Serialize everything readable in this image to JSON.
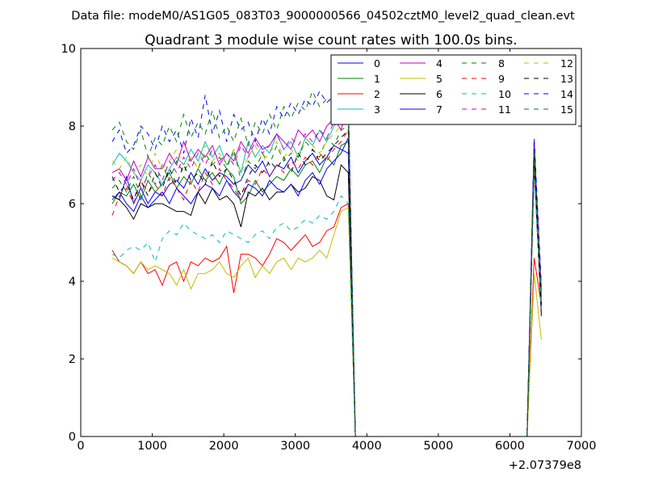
{
  "chart_data": {
    "type": "line",
    "suptitle": "Data file: modeM0/AS1G05_083T03_9000000566_04502cztM0_level2_quad_clean.evt",
    "title": "Quadrant 3 module wise count rates with 100.0s bins.",
    "xlabel": "",
    "ylabel": "",
    "x_offset_label": "+2.07379e8",
    "xlim": [
      0,
      7000
    ],
    "ylim": [
      0,
      10
    ],
    "xticks": [
      0,
      1000,
      2000,
      3000,
      4000,
      5000,
      6000,
      7000
    ],
    "yticks": [
      0,
      2,
      4,
      6,
      8,
      10
    ],
    "grid": false,
    "legend": {
      "placement": "top-right",
      "columns": 4
    },
    "x": [
      440,
      540,
      640,
      740,
      840,
      940,
      1040,
      1140,
      1240,
      1340,
      1440,
      1540,
      1640,
      1740,
      1840,
      1940,
      2040,
      2140,
      2240,
      2340,
      2440,
      2540,
      2640,
      2740,
      2840,
      2940,
      3040,
      3140,
      3240,
      3340,
      3440,
      3540,
      3640,
      3740,
      3840,
      3940,
      4040,
      4140,
      4240,
      4340,
      4440,
      4540,
      4640,
      4740,
      4840,
      4940,
      5040,
      5140,
      5240,
      5340,
      5440,
      5540,
      5640,
      5740,
      5840,
      5940,
      6040,
      6140,
      6240,
      6340,
      6440
    ],
    "series": [
      {
        "name": "0",
        "color": "#0000ff",
        "dash": "solid",
        "values": [
          6.2,
          6.1,
          6.7,
          6.0,
          6.4,
          6.0,
          6.3,
          6.2,
          6.5,
          6.6,
          6.4,
          6.8,
          6.5,
          6.9,
          6.6,
          6.8,
          6.7,
          6.5,
          6.6,
          7.0,
          6.8,
          7.1,
          6.7,
          7.0,
          6.9,
          7.2,
          6.8,
          7.1,
          7.3,
          7.0,
          7.2,
          7.5,
          7.4,
          7.3,
          0,
          0,
          0,
          0,
          0,
          0,
          0,
          0,
          0,
          0,
          0,
          0,
          0,
          0,
          0,
          0,
          0,
          0,
          0,
          0,
          0,
          0,
          0,
          0,
          0,
          7.4,
          3.2
        ]
      },
      {
        "name": "1",
        "color": "#008000",
        "dash": "solid",
        "values": [
          6.0,
          6.3,
          6.2,
          6.5,
          6.1,
          6.6,
          6.3,
          6.5,
          6.8,
          6.4,
          6.7,
          6.5,
          6.9,
          6.6,
          6.8,
          6.5,
          6.9,
          6.7,
          6.0,
          6.2,
          6.6,
          6.3,
          6.5,
          6.7,
          6.6,
          6.9,
          6.7,
          7.0,
          7.1,
          6.8,
          7.2,
          7.0,
          7.5,
          7.6,
          0,
          0,
          0,
          0,
          0,
          0,
          0,
          0,
          0,
          0,
          0,
          0,
          0,
          0,
          0,
          0,
          0,
          0,
          0,
          0,
          0,
          0,
          0,
          0,
          0,
          7.2,
          3.5
        ]
      },
      {
        "name": "2",
        "color": "#ff0000",
        "dash": "solid",
        "values": [
          4.8,
          4.5,
          4.4,
          4.2,
          4.5,
          4.2,
          4.3,
          3.9,
          4.4,
          4.5,
          4.0,
          4.5,
          4.4,
          4.6,
          4.5,
          4.6,
          4.9,
          3.7,
          4.7,
          4.7,
          4.6,
          4.4,
          4.7,
          5.1,
          5.0,
          4.8,
          5.0,
          5.2,
          4.9,
          5.0,
          5.3,
          5.4,
          5.9,
          6.0,
          0,
          0,
          0,
          0,
          0,
          0,
          0,
          0,
          0,
          0,
          0,
          0,
          0,
          0,
          0,
          0,
          0,
          0,
          0,
          0,
          0,
          0,
          0,
          0,
          0,
          4.6,
          3.4
        ]
      },
      {
        "name": "3",
        "color": "#00bfbf",
        "dash": "solid",
        "values": [
          7.0,
          7.3,
          7.1,
          6.8,
          6.6,
          7.0,
          6.8,
          6.5,
          6.9,
          7.2,
          7.0,
          7.4,
          7.1,
          7.6,
          7.2,
          7.5,
          7.0,
          7.3,
          6.8,
          7.6,
          7.2,
          7.5,
          7.3,
          7.8,
          7.4,
          7.6,
          7.2,
          7.7,
          7.5,
          7.9,
          7.6,
          8.0,
          8.2,
          8.5,
          0,
          0,
          0,
          0,
          0,
          0,
          0,
          0,
          0,
          0,
          0,
          0,
          0,
          0,
          0,
          0,
          0,
          0,
          0,
          0,
          0,
          0,
          0,
          0,
          0,
          7.3,
          3.6
        ]
      },
      {
        "name": "4",
        "color": "#bf00bf",
        "dash": "solid",
        "values": [
          6.8,
          6.9,
          6.6,
          7.1,
          6.7,
          7.2,
          6.9,
          6.9,
          7.3,
          7.0,
          7.6,
          7.1,
          7.4,
          7.2,
          7.5,
          7.0,
          7.3,
          7.1,
          7.6,
          7.3,
          7.7,
          7.4,
          7.5,
          7.8,
          7.6,
          7.4,
          7.9,
          7.7,
          7.9,
          7.6,
          8.0,
          8.2,
          7.9,
          8.6,
          0,
          0,
          0,
          0,
          0,
          0,
          0,
          0,
          0,
          0,
          0,
          0,
          0,
          0,
          0,
          0,
          0,
          0,
          0,
          0,
          0,
          0,
          0,
          0,
          0,
          7.6,
          3.8
        ]
      },
      {
        "name": "5",
        "color": "#bfbf00",
        "dash": "solid",
        "values": [
          4.6,
          4.5,
          4.4,
          4.2,
          4.5,
          4.3,
          4.4,
          4.3,
          4.2,
          3.9,
          4.3,
          3.8,
          4.2,
          4.2,
          4.3,
          4.5,
          4.2,
          4.1,
          4.4,
          4.6,
          4.1,
          4.4,
          4.2,
          4.5,
          4.6,
          4.3,
          4.6,
          4.5,
          4.6,
          4.8,
          4.6,
          5.2,
          5.8,
          5.9,
          0,
          0,
          0,
          0,
          0,
          0,
          0,
          0,
          0,
          0,
          0,
          0,
          0,
          0,
          0,
          0,
          0,
          0,
          0,
          0,
          0,
          0,
          0,
          0,
          0,
          4.2,
          2.5
        ]
      },
      {
        "name": "6",
        "color": "#000000",
        "dash": "solid",
        "values": [
          6.2,
          6.1,
          5.9,
          5.6,
          6.0,
          5.9,
          6.0,
          6.0,
          5.9,
          5.8,
          5.8,
          5.7,
          6.3,
          6.0,
          6.4,
          6.1,
          6.2,
          6.0,
          5.4,
          6.3,
          6.2,
          6.4,
          6.1,
          6.3,
          6.3,
          6.5,
          6.3,
          6.4,
          6.7,
          6.6,
          6.2,
          6.1,
          7.0,
          6.8,
          0,
          0,
          0,
          0,
          0,
          0,
          0,
          0,
          0,
          0,
          0,
          0,
          0,
          0,
          0,
          0,
          0,
          0,
          0,
          0,
          0,
          0,
          0,
          0,
          0,
          7.0,
          3.1
        ]
      },
      {
        "name": "7",
        "color": "#0000ff",
        "dash": "solid",
        "values": [
          6.1,
          6.3,
          6.0,
          5.8,
          6.2,
          5.9,
          6.1,
          6.3,
          6.0,
          6.4,
          6.2,
          6.0,
          6.3,
          6.5,
          6.4,
          6.2,
          6.6,
          6.3,
          6.1,
          6.5,
          6.4,
          6.2,
          6.6,
          6.4,
          6.3,
          6.5,
          6.2,
          6.6,
          6.8,
          6.5,
          6.9,
          7.1,
          7.3,
          7.7,
          0,
          0,
          0,
          0,
          0,
          0,
          0,
          0,
          0,
          0,
          0,
          0,
          0,
          0,
          0,
          0,
          0,
          0,
          0,
          0,
          0,
          0,
          0,
          0,
          0,
          7.6,
          3.3
        ]
      },
      {
        "name": "8",
        "color": "#008000",
        "dash": "dashed",
        "values": [
          6.4,
          6.6,
          6.3,
          6.7,
          6.2,
          6.8,
          6.5,
          7.0,
          6.6,
          7.1,
          6.8,
          7.2,
          6.9,
          7.3,
          7.0,
          7.2,
          6.9,
          7.4,
          6.6,
          7.1,
          6.9,
          7.3,
          7.0,
          7.5,
          7.1,
          7.3,
          7.2,
          7.6,
          7.4,
          7.2,
          7.7,
          7.5,
          7.9,
          8.0,
          0,
          0,
          0,
          0,
          0,
          0,
          0,
          0,
          0,
          0,
          0,
          0,
          0,
          0,
          0,
          0,
          0,
          0,
          0,
          0,
          0,
          0,
          0,
          0,
          0,
          7.3,
          3.4
        ]
      },
      {
        "name": "9",
        "color": "#ff0000",
        "dash": "dashed",
        "values": [
          5.7,
          6.2,
          6.4,
          6.0,
          6.6,
          6.3,
          6.5,
          6.2,
          6.7,
          6.4,
          6.1,
          6.6,
          6.3,
          6.8,
          6.5,
          6.9,
          6.6,
          6.4,
          6.1,
          6.6,
          6.5,
          6.9,
          6.7,
          7.0,
          6.8,
          7.1,
          6.9,
          7.2,
          7.0,
          7.3,
          7.1,
          7.4,
          7.6,
          7.9,
          0,
          0,
          0,
          0,
          0,
          0,
          0,
          0,
          0,
          0,
          0,
          0,
          0,
          0,
          0,
          0,
          0,
          0,
          0,
          0,
          0,
          0,
          0,
          0,
          0,
          6.9,
          3.2
        ]
      },
      {
        "name": "10",
        "color": "#00bfbf",
        "dash": "dashed",
        "values": [
          4.7,
          4.6,
          4.8,
          4.9,
          4.8,
          5.0,
          4.5,
          5.1,
          5.3,
          5.2,
          5.5,
          5.3,
          5.2,
          5.1,
          5.2,
          5.0,
          5.3,
          5.2,
          5.1,
          5.0,
          5.2,
          5.3,
          5.1,
          5.4,
          5.5,
          5.3,
          5.4,
          5.6,
          5.5,
          5.7,
          5.6,
          5.8,
          6.2,
          6.0,
          0,
          0,
          0,
          0,
          0,
          0,
          0,
          0,
          0,
          0,
          0,
          0,
          0,
          0,
          0,
          0,
          0,
          0,
          0,
          0,
          0,
          0,
          0,
          0,
          0,
          6.8,
          3.3
        ]
      },
      {
        "name": "11",
        "color": "#bf00bf",
        "dash": "dashed",
        "values": [
          6.6,
          6.8,
          6.5,
          6.9,
          6.4,
          6.7,
          7.0,
          6.6,
          7.1,
          6.8,
          7.2,
          6.9,
          7.3,
          7.0,
          7.4,
          7.1,
          7.3,
          7.0,
          7.5,
          7.2,
          7.6,
          7.3,
          7.5,
          7.8,
          7.4,
          7.7,
          7.5,
          7.8,
          7.6,
          7.9,
          7.7,
          8.1,
          8.4,
          8.6,
          0,
          0,
          0,
          0,
          0,
          0,
          0,
          0,
          0,
          0,
          0,
          0,
          0,
          0,
          0,
          0,
          0,
          0,
          0,
          0,
          0,
          0,
          0,
          0,
          0,
          7.5,
          3.7
        ]
      },
      {
        "name": "12",
        "color": "#bfbf00",
        "dash": "dashed",
        "values": [
          7.1,
          6.9,
          7.2,
          6.8,
          7.0,
          6.7,
          7.3,
          6.9,
          7.1,
          7.4,
          7.0,
          7.2,
          6.9,
          7.5,
          7.1,
          7.3,
          7.0,
          7.4,
          6.8,
          7.2,
          7.5,
          7.1,
          7.3,
          7.6,
          7.2,
          7.4,
          7.1,
          7.7,
          7.5,
          7.3,
          7.6,
          7.8,
          8.0,
          8.3,
          0,
          0,
          0,
          0,
          0,
          0,
          0,
          0,
          0,
          0,
          0,
          0,
          0,
          0,
          0,
          0,
          0,
          0,
          0,
          0,
          0,
          0,
          0,
          0,
          0,
          7.1,
          3.5
        ]
      },
      {
        "name": "13",
        "color": "#000000",
        "dash": "dashed",
        "values": [
          6.7,
          6.3,
          6.5,
          6.1,
          6.6,
          6.2,
          6.8,
          6.4,
          6.9,
          6.5,
          7.0,
          6.6,
          6.8,
          6.5,
          7.1,
          6.7,
          6.9,
          6.6,
          6.2,
          6.7,
          7.0,
          6.8,
          7.1,
          6.9,
          7.2,
          6.8,
          7.3,
          7.0,
          7.4,
          7.1,
          7.3,
          7.5,
          7.7,
          7.9,
          0,
          0,
          0,
          0,
          0,
          0,
          0,
          0,
          0,
          0,
          0,
          0,
          0,
          0,
          0,
          0,
          0,
          0,
          0,
          0,
          0,
          0,
          0,
          0,
          0,
          7.2,
          3.4
        ]
      },
      {
        "name": "14",
        "color": "#0000ff",
        "dash": "dashed",
        "values": [
          7.6,
          7.9,
          7.3,
          7.5,
          8.0,
          7.8,
          7.4,
          8.0,
          7.6,
          7.9,
          7.3,
          8.2,
          7.7,
          8.8,
          7.8,
          8.4,
          7.6,
          8.3,
          7.9,
          8.1,
          7.6,
          8.2,
          7.8,
          8.5,
          8.2,
          8.6,
          8.3,
          8.7,
          8.5,
          8.9,
          8.6,
          8.8,
          9.0,
          8.7,
          0,
          0,
          0,
          0,
          0,
          0,
          0,
          0,
          0,
          0,
          0,
          0,
          0,
          0,
          0,
          0,
          0,
          0,
          0,
          0,
          0,
          0,
          0,
          0,
          0,
          7.7,
          3.9
        ]
      },
      {
        "name": "15",
        "color": "#008000",
        "dash": "dashed",
        "values": [
          7.9,
          8.1,
          7.6,
          7.4,
          7.9,
          7.2,
          7.7,
          7.5,
          8.0,
          7.6,
          8.3,
          7.7,
          8.1,
          7.8,
          8.4,
          7.7,
          8.0,
          7.6,
          8.2,
          7.5,
          8.1,
          7.8,
          8.3,
          7.9,
          8.5,
          8.2,
          8.6,
          8.4,
          8.9,
          8.5,
          8.7,
          8.6,
          9.0,
          8.8,
          0,
          0,
          0,
          0,
          0,
          0,
          0,
          0,
          0,
          0,
          0,
          0,
          0,
          0,
          0,
          0,
          0,
          0,
          0,
          0,
          0,
          0,
          0,
          0,
          0,
          7.4,
          3.6
        ]
      }
    ]
  }
}
